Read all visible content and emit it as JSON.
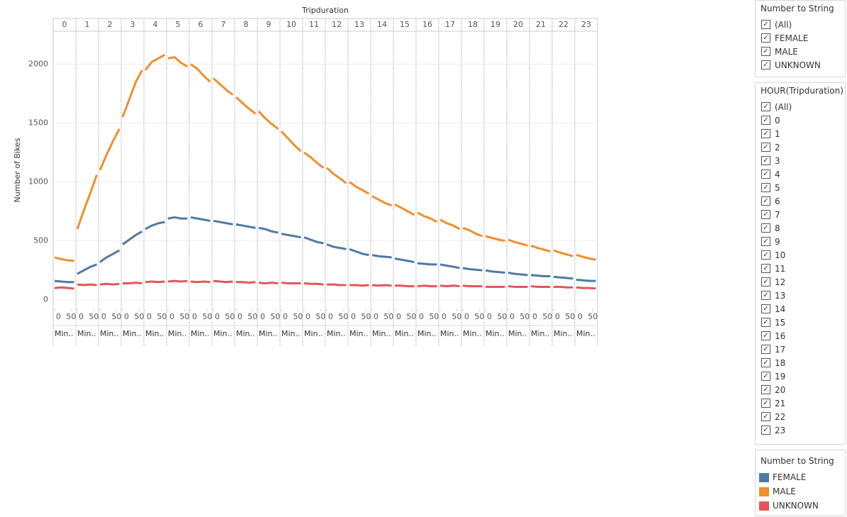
{
  "chart_data": {
    "type": "line",
    "title": "Tripduration",
    "y_label": "Number of Bikes",
    "panels": [
      "0",
      "1",
      "2",
      "3",
      "4",
      "5",
      "6",
      "7",
      "8",
      "9",
      "10",
      "11",
      "12",
      "13",
      "14",
      "15",
      "16",
      "17",
      "18",
      "19",
      "20",
      "21",
      "22",
      "23"
    ],
    "x": [
      0,
      20,
      40,
      59
    ],
    "xlim": [
      0,
      60
    ],
    "xticks": [
      0,
      50
    ],
    "x_unit_label": "Min..",
    "ylim": [
      -80,
      2280
    ],
    "yticks": [
      0,
      500,
      1000,
      1500,
      2000
    ],
    "grid": true,
    "series": [
      {
        "name": "FEMALE",
        "color": "#4e79a7",
        "values": [
          [
            160,
            155,
            150,
            150
          ],
          [
            220,
            250,
            280,
            300
          ],
          [
            320,
            360,
            390,
            420
          ],
          [
            470,
            510,
            550,
            580
          ],
          [
            600,
            630,
            650,
            660
          ],
          [
            690,
            700,
            690,
            690
          ],
          [
            700,
            690,
            680,
            670
          ],
          [
            670,
            660,
            650,
            640
          ],
          [
            640,
            630,
            620,
            610
          ],
          [
            610,
            600,
            580,
            570
          ],
          [
            560,
            550,
            540,
            530
          ],
          [
            530,
            510,
            490,
            480
          ],
          [
            470,
            450,
            440,
            430
          ],
          [
            430,
            410,
            390,
            380
          ],
          [
            380,
            370,
            365,
            360
          ],
          [
            350,
            340,
            330,
            320
          ],
          [
            310,
            305,
            300,
            300
          ],
          [
            300,
            290,
            280,
            270
          ],
          [
            270,
            260,
            255,
            250
          ],
          [
            250,
            240,
            235,
            230
          ],
          [
            230,
            220,
            215,
            210
          ],
          [
            210,
            205,
            200,
            200
          ],
          [
            195,
            190,
            185,
            180
          ],
          [
            170,
            165,
            160,
            160
          ]
        ]
      },
      {
        "name": "MALE",
        "color": "#f28e2b",
        "values": [
          [
            360,
            345,
            335,
            330
          ],
          [
            600,
            760,
            910,
            1060
          ],
          [
            1100,
            1230,
            1350,
            1450
          ],
          [
            1550,
            1700,
            1850,
            1950
          ],
          [
            1950,
            2020,
            2050,
            2080
          ],
          [
            2050,
            2060,
            2010,
            1980
          ],
          [
            2000,
            1960,
            1900,
            1850
          ],
          [
            1880,
            1830,
            1780,
            1740
          ],
          [
            1720,
            1670,
            1620,
            1580
          ],
          [
            1600,
            1540,
            1490,
            1450
          ],
          [
            1430,
            1370,
            1310,
            1260
          ],
          [
            1250,
            1210,
            1160,
            1120
          ],
          [
            1120,
            1070,
            1030,
            990
          ],
          [
            1000,
            960,
            930,
            900
          ],
          [
            880,
            850,
            820,
            800
          ],
          [
            810,
            780,
            750,
            720
          ],
          [
            740,
            710,
            690,
            660
          ],
          [
            680,
            650,
            630,
            600
          ],
          [
            610,
            590,
            560,
            540
          ],
          [
            540,
            525,
            510,
            500
          ],
          [
            510,
            490,
            475,
            460
          ],
          [
            460,
            440,
            425,
            410
          ],
          [
            420,
            400,
            385,
            370
          ],
          [
            380,
            365,
            350,
            340
          ]
        ]
      },
      {
        "name": "UNKNOWN",
        "color": "#e15759",
        "values": [
          [
            100,
            105,
            100,
            95
          ],
          [
            130,
            125,
            130,
            125
          ],
          [
            130,
            135,
            130,
            135
          ],
          [
            140,
            140,
            145,
            140
          ],
          [
            150,
            155,
            150,
            155
          ],
          [
            155,
            160,
            155,
            160
          ],
          [
            155,
            150,
            155,
            150
          ],
          [
            160,
            155,
            150,
            155
          ],
          [
            150,
            150,
            145,
            150
          ],
          [
            145,
            140,
            145,
            140
          ],
          [
            145,
            140,
            140,
            140
          ],
          [
            140,
            135,
            135,
            130
          ],
          [
            130,
            130,
            125,
            125
          ],
          [
            125,
            125,
            120,
            125
          ],
          [
            125,
            120,
            125,
            120
          ],
          [
            120,
            120,
            115,
            115
          ],
          [
            115,
            120,
            115,
            115
          ],
          [
            120,
            115,
            120,
            115
          ],
          [
            120,
            115,
            115,
            115
          ],
          [
            110,
            110,
            110,
            110
          ],
          [
            115,
            110,
            110,
            110
          ],
          [
            115,
            110,
            110,
            110
          ],
          [
            110,
            110,
            105,
            105
          ],
          [
            105,
            100,
            100,
            95
          ]
        ]
      }
    ],
    "legend_title": "Number to String"
  },
  "filters": [
    {
      "title": "Number to String",
      "items": [
        "(All)",
        "FEMALE",
        "MALE",
        "UNKNOWN"
      ]
    },
    {
      "title": "HOUR(Tripduration)",
      "items": [
        "(All)",
        "0",
        "1",
        "2",
        "3",
        "4",
        "5",
        "6",
        "7",
        "8",
        "9",
        "10",
        "11",
        "12",
        "13",
        "14",
        "15",
        "16",
        "17",
        "18",
        "19",
        "20",
        "21",
        "22",
        "23"
      ]
    }
  ]
}
